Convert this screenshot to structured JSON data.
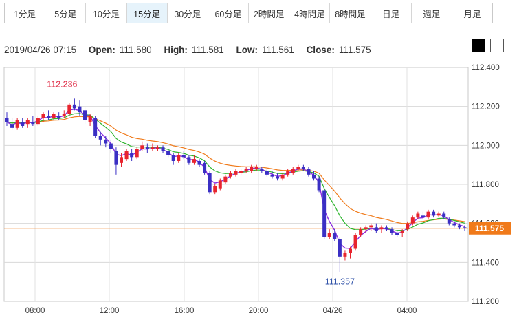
{
  "tabs": [
    {
      "label": "1分足",
      "active": false
    },
    {
      "label": "5分足",
      "active": false
    },
    {
      "label": "10分足",
      "active": false
    },
    {
      "label": "15分足",
      "active": true
    },
    {
      "label": "30分足",
      "active": false
    },
    {
      "label": "60分足",
      "active": false
    },
    {
      "label": "2時間足",
      "active": false
    },
    {
      "label": "4時間足",
      "active": false
    },
    {
      "label": "8時間足",
      "active": false
    },
    {
      "label": "日足",
      "active": false
    },
    {
      "label": "週足",
      "active": false
    },
    {
      "label": "月足",
      "active": false
    }
  ],
  "info": {
    "datetime": "2019/04/26 07:15",
    "open_label": "Open:",
    "open": "111.580",
    "high_label": "High:",
    "high": "111.581",
    "low_label": "Low:",
    "low": "111.561",
    "close_label": "Close:",
    "close": "111.575"
  },
  "theme_buttons": [
    "black",
    "white"
  ],
  "chart_data": {
    "type": "candlestick",
    "y_range": [
      111.2,
      112.4
    ],
    "y_ticks": [
      "112.400",
      "112.200",
      "112.000",
      "111.800",
      "111.600",
      "111.400",
      "111.200"
    ],
    "x_ticks": [
      "08:00",
      "12:00",
      "16:00",
      "20:00",
      "04/26",
      "04:00"
    ],
    "current_price": "111.575",
    "annotations": {
      "high_label": "112.236",
      "low_label": "111.357"
    },
    "colors": {
      "up": "#e8242e",
      "down": "#3a2fc4",
      "ma_short": "#8a2be2",
      "ma_mid": "#2db52d",
      "ma_long": "#f07a1a",
      "price_line": "#f07a1a",
      "grid": "#d8d8d8"
    },
    "candles": [
      [
        112.14,
        112.17,
        112.1,
        112.12
      ],
      [
        112.11,
        112.14,
        112.08,
        112.09
      ],
      [
        112.09,
        112.14,
        112.08,
        112.13
      ],
      [
        112.12,
        112.14,
        112.09,
        112.1
      ],
      [
        112.11,
        112.14,
        112.09,
        112.13
      ],
      [
        112.12,
        112.15,
        112.1,
        112.11
      ],
      [
        112.11,
        112.15,
        112.1,
        112.14
      ],
      [
        112.14,
        112.17,
        112.12,
        112.16
      ],
      [
        112.15,
        112.18,
        112.13,
        112.14
      ],
      [
        112.14,
        112.17,
        112.13,
        112.16
      ],
      [
        112.15,
        112.17,
        112.13,
        112.14
      ],
      [
        112.15,
        112.18,
        112.14,
        112.16
      ],
      [
        112.16,
        112.22,
        112.15,
        112.21
      ],
      [
        112.21,
        112.24,
        112.18,
        112.19
      ],
      [
        112.2,
        112.23,
        112.15,
        112.17
      ],
      [
        112.18,
        112.2,
        112.11,
        112.13
      ],
      [
        112.12,
        112.16,
        112.1,
        112.15
      ],
      [
        112.14,
        112.15,
        112.04,
        112.05
      ],
      [
        112.05,
        112.07,
        112.0,
        112.03
      ],
      [
        112.03,
        112.05,
        111.99,
        112.01
      ],
      [
        112.01,
        112.03,
        111.96,
        111.98
      ],
      [
        111.97,
        111.99,
        111.85,
        111.9
      ],
      [
        111.91,
        111.96,
        111.89,
        111.94
      ],
      [
        111.93,
        111.98,
        111.92,
        111.97
      ],
      [
        111.96,
        111.98,
        111.92,
        111.94
      ],
      [
        111.94,
        111.99,
        111.93,
        111.98
      ],
      [
        111.98,
        112.02,
        111.97,
        112.0
      ],
      [
        111.99,
        112.01,
        111.96,
        111.98
      ],
      [
        111.98,
        112.01,
        111.97,
        111.99
      ],
      [
        111.98,
        112.0,
        111.97,
        111.99
      ],
      [
        111.99,
        112.0,
        111.96,
        111.97
      ],
      [
        111.97,
        111.98,
        111.94,
        111.95
      ],
      [
        111.95,
        111.96,
        111.9,
        111.92
      ],
      [
        111.92,
        111.96,
        111.91,
        111.95
      ],
      [
        111.95,
        111.97,
        111.93,
        111.94
      ],
      [
        111.94,
        111.95,
        111.9,
        111.91
      ],
      [
        111.91,
        111.95,
        111.9,
        111.93
      ],
      [
        111.92,
        111.93,
        111.89,
        111.9
      ],
      [
        111.91,
        111.92,
        111.85,
        111.86
      ],
      [
        111.86,
        111.87,
        111.75,
        111.76
      ],
      [
        111.76,
        111.8,
        111.75,
        111.79
      ],
      [
        111.78,
        111.83,
        111.77,
        111.82
      ],
      [
        111.81,
        111.85,
        111.8,
        111.84
      ],
      [
        111.84,
        111.87,
        111.83,
        111.86
      ],
      [
        111.85,
        111.88,
        111.84,
        111.87
      ],
      [
        111.86,
        111.88,
        111.85,
        111.87
      ],
      [
        111.87,
        111.89,
        111.86,
        111.88
      ],
      [
        111.87,
        111.9,
        111.86,
        111.89
      ],
      [
        111.88,
        111.9,
        111.87,
        111.89
      ],
      [
        111.88,
        111.89,
        111.86,
        111.87
      ],
      [
        111.87,
        111.88,
        111.84,
        111.85
      ],
      [
        111.85,
        111.87,
        111.83,
        111.84
      ],
      [
        111.84,
        111.86,
        111.82,
        111.83
      ],
      [
        111.83,
        111.86,
        111.82,
        111.85
      ],
      [
        111.85,
        111.88,
        111.84,
        111.87
      ],
      [
        111.86,
        111.89,
        111.85,
        111.88
      ],
      [
        111.88,
        111.9,
        111.87,
        111.89
      ],
      [
        111.89,
        111.9,
        111.87,
        111.88
      ],
      [
        111.88,
        111.89,
        111.84,
        111.85
      ],
      [
        111.85,
        111.87,
        111.82,
        111.83
      ],
      [
        111.83,
        111.84,
        111.76,
        111.77
      ],
      [
        111.77,
        111.78,
        111.52,
        111.53
      ],
      [
        111.53,
        111.57,
        111.52,
        111.55
      ],
      [
        111.55,
        111.57,
        111.51,
        111.52
      ],
      [
        111.52,
        111.53,
        111.35,
        111.43
      ],
      [
        111.43,
        111.46,
        111.41,
        111.45
      ],
      [
        111.45,
        111.48,
        111.42,
        111.47
      ],
      [
        111.47,
        111.55,
        111.46,
        111.54
      ],
      [
        111.54,
        111.58,
        111.53,
        111.57
      ],
      [
        111.57,
        111.59,
        111.55,
        111.58
      ],
      [
        111.58,
        111.6,
        111.56,
        111.59
      ],
      [
        111.58,
        111.6,
        111.55,
        111.56
      ],
      [
        111.57,
        111.59,
        111.55,
        111.58
      ],
      [
        111.58,
        111.59,
        111.56,
        111.57
      ],
      [
        111.57,
        111.58,
        111.54,
        111.55
      ],
      [
        111.55,
        111.56,
        111.53,
        111.54
      ],
      [
        111.55,
        111.57,
        111.53,
        111.56
      ],
      [
        111.57,
        111.61,
        111.56,
        111.6
      ],
      [
        111.6,
        111.64,
        111.59,
        111.63
      ],
      [
        111.63,
        111.66,
        111.62,
        111.65
      ],
      [
        111.64,
        111.66,
        111.62,
        111.63
      ],
      [
        111.63,
        111.67,
        111.62,
        111.66
      ],
      [
        111.66,
        111.67,
        111.63,
        111.64
      ],
      [
        111.64,
        111.66,
        111.63,
        111.65
      ],
      [
        111.65,
        111.66,
        111.62,
        111.63
      ],
      [
        111.62,
        111.63,
        111.59,
        111.6
      ],
      [
        111.6,
        111.61,
        111.58,
        111.59
      ],
      [
        111.59,
        111.6,
        111.57,
        111.58
      ],
      [
        111.58,
        111.59,
        111.56,
        111.575
      ]
    ]
  }
}
